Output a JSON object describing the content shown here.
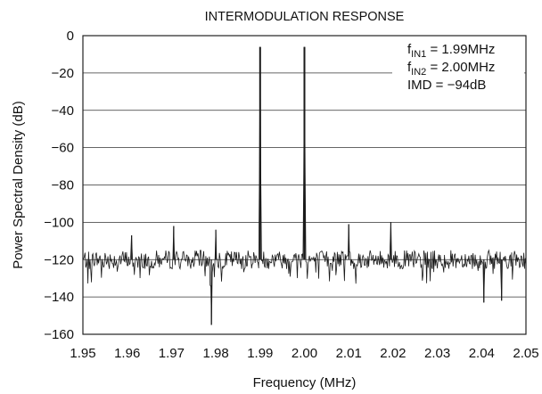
{
  "chart_data": {
    "type": "line",
    "title": "INTERMODULATION RESPONSE",
    "xlabel": "Frequency (MHz)",
    "ylabel": "Power Spectral Density (dB)",
    "xlim": [
      1.95,
      2.05
    ],
    "ylim": [
      -160,
      0
    ],
    "x_ticks": [
      "1.95",
      "1.96",
      "1.97",
      "1.98",
      "1.99",
      "2.00",
      "2.01",
      "2.02",
      "2.03",
      "2.04",
      "2.05"
    ],
    "y_ticks": [
      "0",
      "−20",
      "−40",
      "−60",
      "−80",
      "−100",
      "−120",
      "−140",
      "−160"
    ],
    "grid": "horizontal",
    "annotations": [
      {
        "main": "f",
        "sub": "IN1",
        "rest": " = 1.99MHz"
      },
      {
        "main": "f",
        "sub": "IN2",
        "rest": " = 2.00MHz"
      },
      {
        "main": "IMD = −94dB",
        "sub": "",
        "rest": ""
      }
    ],
    "series": [
      {
        "noise_floor_db": -120,
        "peaks": [
          {
            "x": 1.99,
            "y": -6
          },
          {
            "x": 2.0,
            "y": -6
          },
          {
            "x": 1.961,
            "y": -107
          },
          {
            "x": 1.9705,
            "y": -102
          },
          {
            "x": 1.98,
            "y": -104
          },
          {
            "x": 2.01,
            "y": -101
          },
          {
            "x": 2.0195,
            "y": -100
          },
          {
            "x": 1.979,
            "y": -155
          },
          {
            "x": 2.0405,
            "y": -143
          },
          {
            "x": 2.0445,
            "y": -142
          }
        ]
      }
    ]
  }
}
